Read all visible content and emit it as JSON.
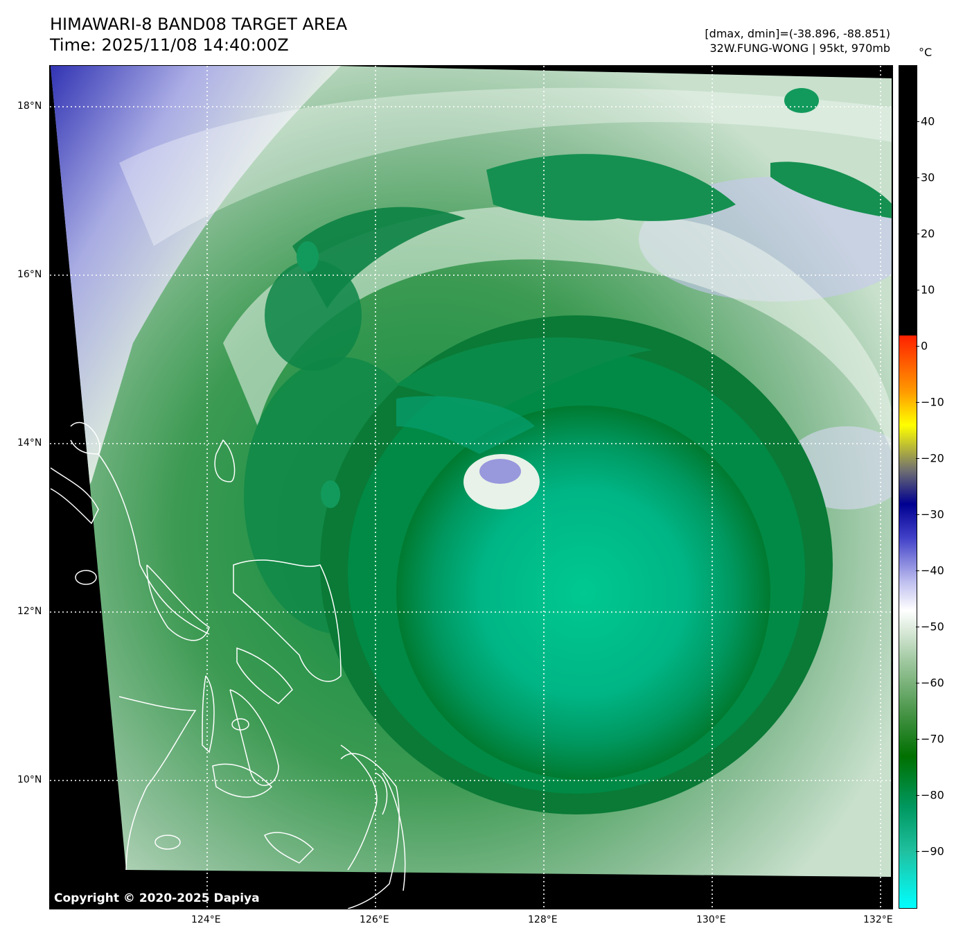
{
  "header": {
    "title_line1": "HIMAWARI-8 BAND08 TARGET AREA",
    "title_line2": "Time: 2025/11/08 14:40:00Z",
    "info_line1": "[dmax, dmin]=(-38.896, -88.851)",
    "info_line2": "32W.FUNG-WONG | 95kt, 970mb"
  },
  "map": {
    "lon_labels": [
      "124°E",
      "126°E",
      "128°E",
      "130°E",
      "132°E"
    ],
    "lat_labels": [
      "18°N",
      "16°N",
      "14°N",
      "12°N",
      "10°N"
    ],
    "copyright": "Copyright © 2020-2025 Dapiya",
    "colors": {
      "coast": "#ffffff",
      "grid": "#ffffff",
      "outside": "#000000"
    }
  },
  "colorbar": {
    "unit": "°C",
    "ticks": [
      "40",
      "30",
      "20",
      "10",
      "0",
      "−10",
      "−20",
      "−30",
      "−40",
      "−50",
      "−60",
      "−70",
      "−80",
      "−90"
    ],
    "tick_values": [
      40,
      30,
      20,
      10,
      0,
      -10,
      -20,
      -30,
      -40,
      -50,
      -60,
      -70,
      -80,
      -90
    ],
    "range": [
      -100,
      50
    ],
    "stops": [
      {
        "value": 50,
        "color": "#000000"
      },
      {
        "value": 2,
        "color": "#000000"
      },
      {
        "value": 2,
        "color": "#ff2000"
      },
      {
        "value": -8,
        "color": "#ff9a00"
      },
      {
        "value": -14,
        "color": "#ffff00"
      },
      {
        "value": -22,
        "color": "#707070"
      },
      {
        "value": -28,
        "color": "#000090"
      },
      {
        "value": -34,
        "color": "#4040c8"
      },
      {
        "value": -42,
        "color": "#c0c0f0"
      },
      {
        "value": -47,
        "color": "#ffffff"
      },
      {
        "value": -56,
        "color": "#a0c8a0"
      },
      {
        "value": -66,
        "color": "#409040"
      },
      {
        "value": -73,
        "color": "#007000"
      },
      {
        "value": -82,
        "color": "#009860"
      },
      {
        "value": -90,
        "color": "#20c0a0"
      },
      {
        "value": -100,
        "color": "#00ffff"
      }
    ]
  }
}
